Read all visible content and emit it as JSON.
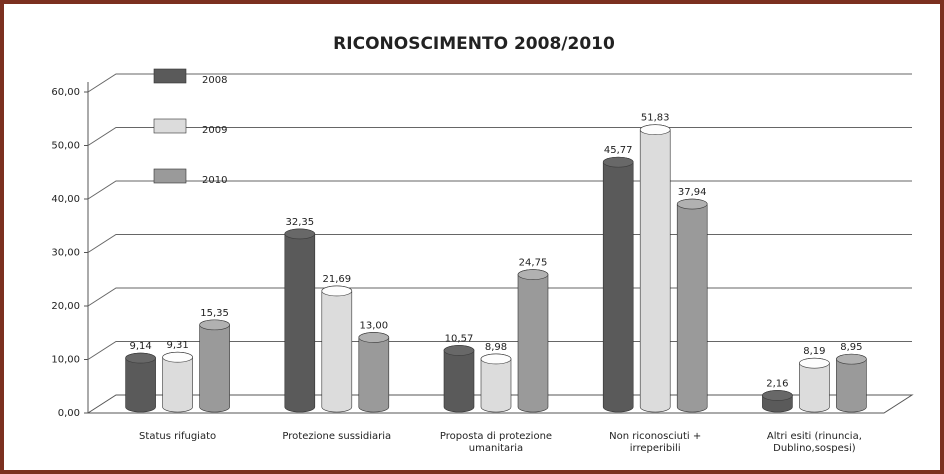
{
  "chart_data": {
    "type": "bar",
    "title": "RICONOSCIMENTO 2008/2010",
    "categories": [
      "Status rifugiato",
      "Protezione sussidiaria",
      "Proposta di protezione umanitaria",
      "Non riconosciuti + irreperibili",
      "Altri esiti (rinuncia, Dublino,sospesi)"
    ],
    "series": [
      {
        "name": "2008",
        "color": "#5a5a5a",
        "values": [
          9.14,
          32.35,
          10.57,
          45.77,
          2.16
        ],
        "value_labels": [
          "9,14",
          "32,35",
          "10,57",
          "45,77",
          "2,16"
        ]
      },
      {
        "name": "2009",
        "color": "#dcdcdc",
        "values": [
          9.31,
          21.69,
          8.98,
          51.83,
          8.19
        ],
        "value_labels": [
          "9,31",
          "21,69",
          "8,98",
          "51,83",
          "8,19"
        ]
      },
      {
        "name": "2010",
        "color": "#9a9a9a",
        "values": [
          15.35,
          13.0,
          24.75,
          37.94,
          8.95
        ],
        "value_labels": [
          "15,35",
          "13,00",
          "24,75",
          "37,94",
          "8,95"
        ]
      }
    ],
    "ylim": [
      0,
      60
    ],
    "yticks": [
      {
        "value": 0,
        "label": "0,00"
      },
      {
        "value": 10,
        "label": "10,00"
      },
      {
        "value": 20,
        "label": "20,00"
      },
      {
        "value": 30,
        "label": "30,00"
      },
      {
        "value": 40,
        "label": "40,00"
      },
      {
        "value": 50,
        "label": "50,00"
      },
      {
        "value": 60,
        "label": "60,00"
      }
    ],
    "grid": true,
    "legend": "top-left"
  }
}
